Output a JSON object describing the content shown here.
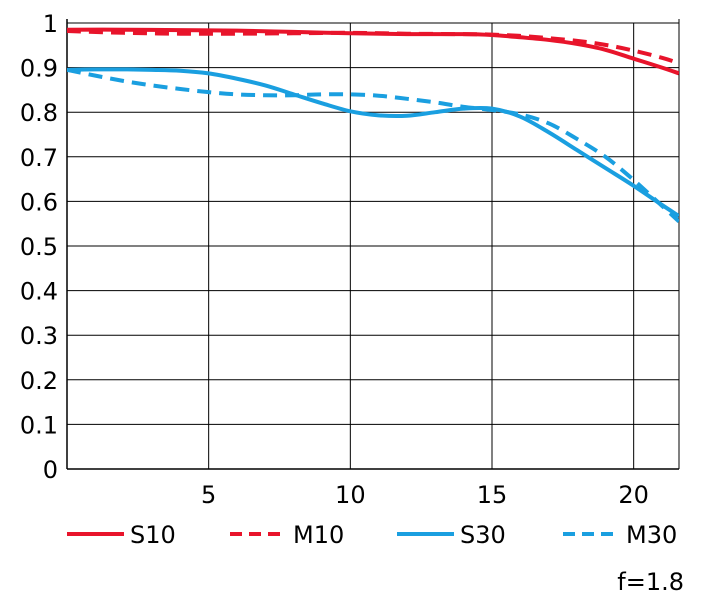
{
  "chart_data": {
    "type": "line",
    "xlim": [
      0,
      21.6
    ],
    "ylim": [
      0,
      1
    ],
    "x_ticks": [
      5,
      10,
      15,
      20
    ],
    "x_tick_labels": [
      "5",
      "10",
      "15",
      "20"
    ],
    "y_ticks": [
      0,
      0.1,
      0.2,
      0.3,
      0.4,
      0.5,
      0.6,
      0.7,
      0.8,
      0.9,
      1
    ],
    "y_tick_labels": [
      "0",
      "0.1",
      "0.2",
      "0.3",
      "0.4",
      "0.5",
      "0.6",
      "0.7",
      "0.8",
      "0.9",
      "1"
    ],
    "grid": true,
    "legend_position": "bottom",
    "annotation": "f=1.8",
    "series": [
      {
        "name": "S10",
        "color": "#e8142b",
        "style": "solid",
        "x": [
          0,
          2,
          4,
          6,
          8,
          10,
          12,
          14,
          15,
          16,
          17,
          18,
          19,
          20,
          21,
          21.6
        ],
        "y": [
          0.985,
          0.985,
          0.984,
          0.983,
          0.98,
          0.977,
          0.975,
          0.975,
          0.973,
          0.968,
          0.962,
          0.953,
          0.94,
          0.92,
          0.9,
          0.887
        ]
      },
      {
        "name": "M10",
        "color": "#e8142b",
        "style": "dashed",
        "x": [
          0,
          2,
          4,
          6,
          8,
          10,
          12,
          14,
          15,
          16,
          17,
          18,
          19,
          20,
          21,
          21.6
        ],
        "y": [
          0.982,
          0.978,
          0.976,
          0.976,
          0.977,
          0.978,
          0.976,
          0.975,
          0.974,
          0.971,
          0.966,
          0.96,
          0.951,
          0.938,
          0.922,
          0.91
        ]
      },
      {
        "name": "S30",
        "color": "#1a9fe0",
        "style": "solid",
        "x": [
          0,
          1,
          2,
          3,
          4,
          5,
          6,
          7,
          8,
          9,
          10,
          11,
          12,
          13,
          14,
          15,
          16,
          17,
          18,
          19,
          20,
          21,
          21.6
        ],
        "y": [
          0.895,
          0.896,
          0.896,
          0.895,
          0.893,
          0.887,
          0.875,
          0.86,
          0.84,
          0.82,
          0.802,
          0.793,
          0.792,
          0.8,
          0.808,
          0.808,
          0.79,
          0.755,
          0.715,
          0.675,
          0.635,
          0.592,
          0.567
        ]
      },
      {
        "name": "M30",
        "color": "#1a9fe0",
        "style": "dashed",
        "x": [
          0,
          1,
          2,
          3,
          4,
          5,
          6,
          7,
          8,
          9,
          10,
          11,
          12,
          13,
          14,
          15,
          16,
          17,
          18,
          19,
          20,
          21,
          21.6
        ],
        "y": [
          0.895,
          0.882,
          0.87,
          0.86,
          0.852,
          0.845,
          0.84,
          0.838,
          0.838,
          0.84,
          0.84,
          0.837,
          0.83,
          0.822,
          0.812,
          0.805,
          0.795,
          0.775,
          0.74,
          0.7,
          0.648,
          0.59,
          0.555
        ]
      }
    ]
  }
}
